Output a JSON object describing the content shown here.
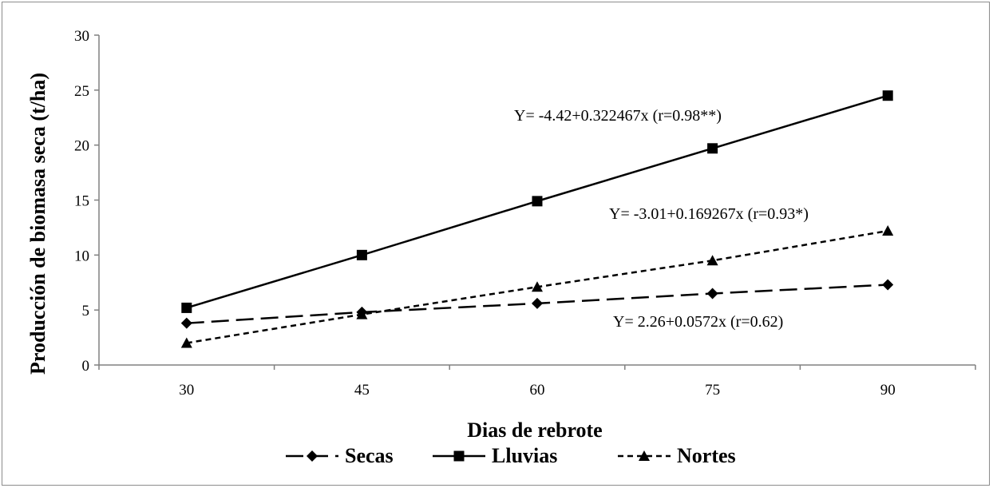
{
  "chart_data": {
    "type": "line",
    "title": "",
    "xlabel": "Dias de rebrote",
    "ylabel": "Producción de biomasa seca (t/ha)",
    "x": [
      30,
      45,
      60,
      75,
      90
    ],
    "ylim": [
      0,
      30
    ],
    "yticks": [
      0,
      5,
      10,
      15,
      20,
      25,
      30
    ],
    "grid": false,
    "legend_position": "bottom",
    "series": [
      {
        "name": "Secas",
        "marker": "diamond",
        "dash": "long-dash",
        "values": [
          3.8,
          4.8,
          5.6,
          6.5,
          7.3
        ]
      },
      {
        "name": "Lluvias",
        "marker": "square",
        "dash": "solid",
        "values": [
          5.2,
          10.0,
          14.9,
          19.7,
          24.5
        ]
      },
      {
        "name": "Nortes",
        "marker": "triangle",
        "dash": "short-dash",
        "values": [
          2.0,
          4.6,
          7.1,
          9.5,
          12.2
        ]
      }
    ],
    "annotations": [
      {
        "series": "Lluvias",
        "text": "Y= -4.42+0.322467x (r=0.98**)"
      },
      {
        "series": "Nortes",
        "text": "Y= -3.01+0.169267x (r=0.93*)"
      },
      {
        "series": "Secas",
        "text": "Y= 2.26+0.0572x (r=0.62)"
      }
    ]
  }
}
